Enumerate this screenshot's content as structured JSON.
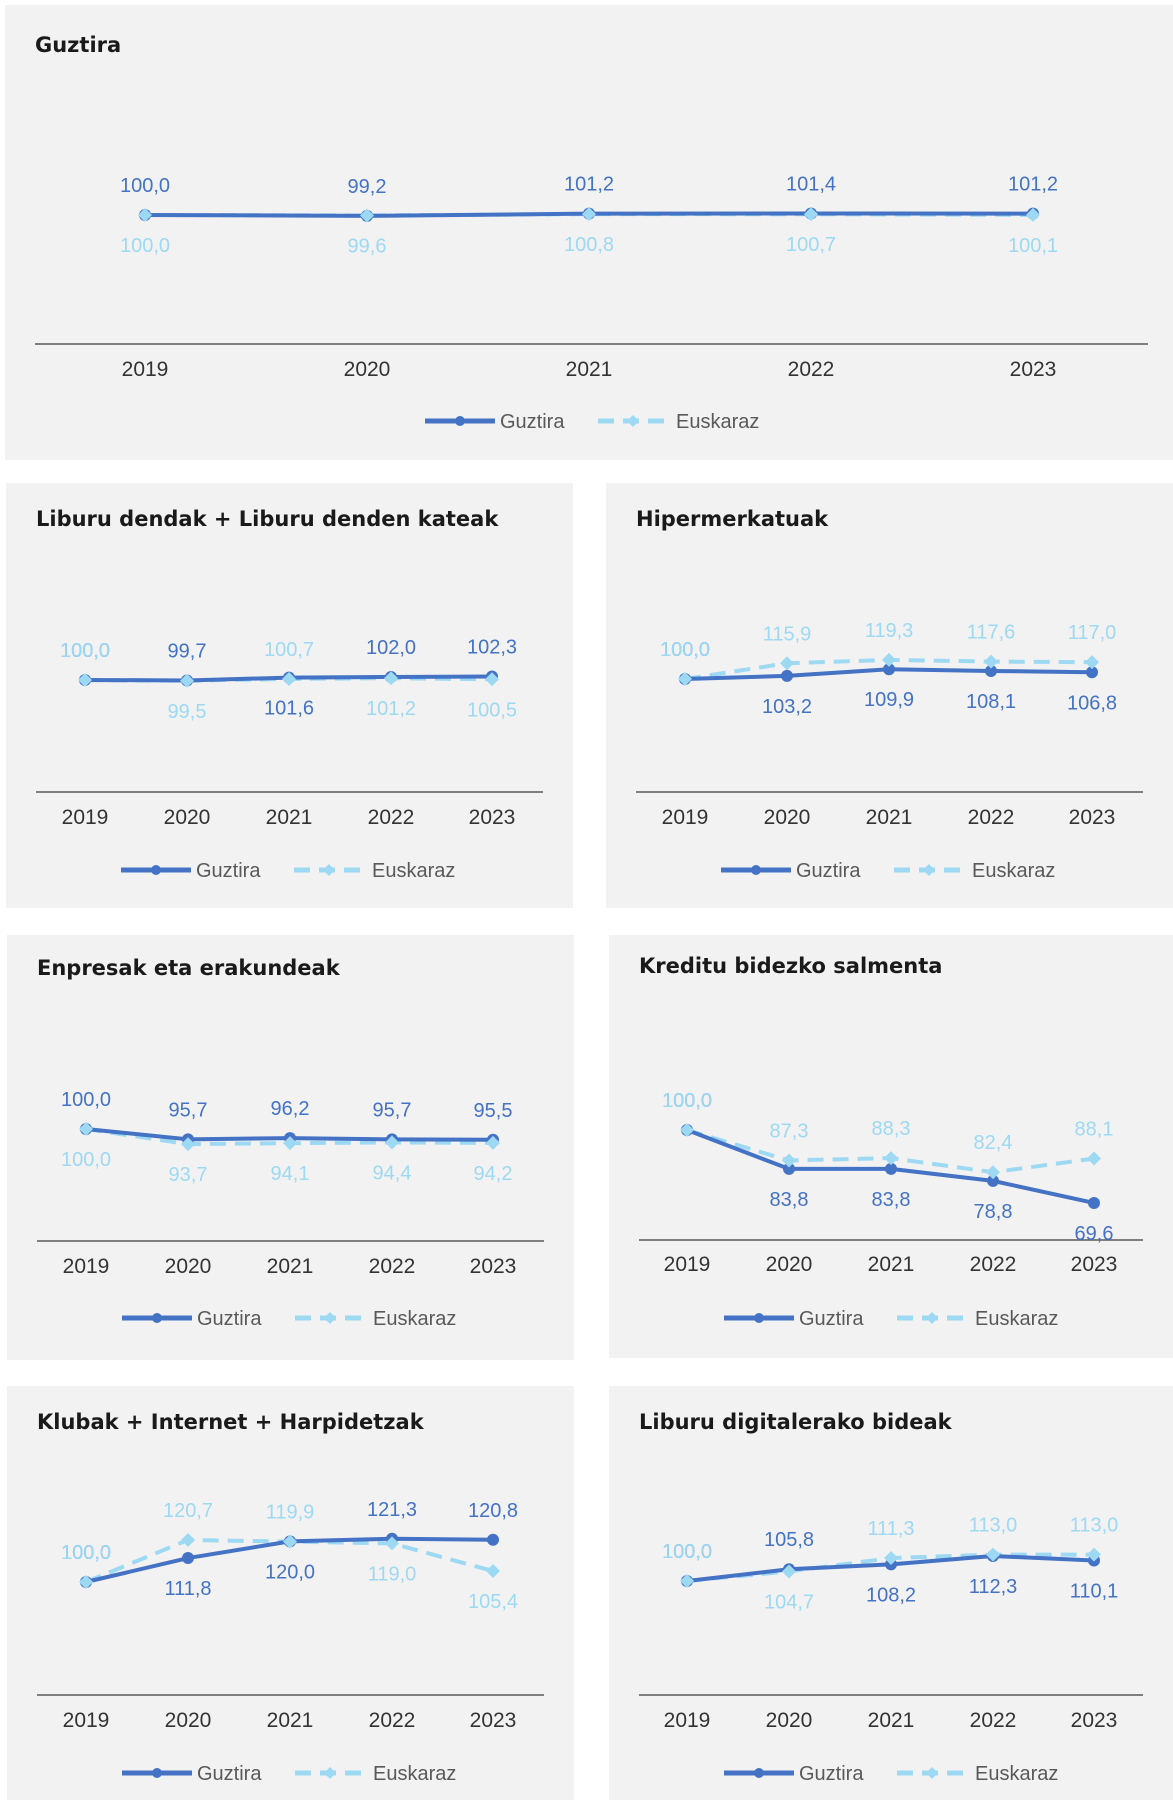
{
  "colors": {
    "total": "#4472c4",
    "basque": "#9dd9f3",
    "panel_bg": "#f2f2f2",
    "axis": "#595959"
  },
  "legend": {
    "total": "Guztira",
    "basque": "Euskaraz"
  },
  "chart_data": [
    {
      "type": "line",
      "title": "Guztira",
      "categories": [
        "2019",
        "2020",
        "2021",
        "2022",
        "2023"
      ],
      "series": [
        {
          "name": "Guztira",
          "values": [
            100.0,
            99.2,
            101.2,
            101.4,
            101.2
          ],
          "labels": [
            "100,0",
            "99,2",
            "101,2",
            "101,4",
            "101,2"
          ]
        },
        {
          "name": "Euskaraz",
          "values": [
            100.0,
            99.6,
            100.8,
            100.7,
            100.1
          ],
          "labels": [
            "100,0",
            "99,6",
            "100,8",
            "100,7",
            "100,1"
          ]
        }
      ],
      "ylim": [
        0,
        200
      ]
    },
    {
      "type": "line",
      "title": "Liburu dendak + Liburu denden kateak",
      "categories": [
        "2019",
        "2020",
        "2021",
        "2022",
        "2023"
      ],
      "series": [
        {
          "name": "Guztira",
          "values": [
            100.0,
            99.7,
            101.6,
            102.0,
            102.3
          ],
          "labels": [
            "100,0",
            "99,7",
            "101,6",
            "102,0",
            "102,3"
          ]
        },
        {
          "name": "Euskaraz",
          "values": [
            100.0,
            99.5,
            100.7,
            101.2,
            100.5
          ],
          "labels": [
            "100,0",
            "99,5",
            "100,7",
            "101,2",
            "100,5"
          ]
        }
      ],
      "ylim": [
        0,
        200
      ]
    },
    {
      "type": "line",
      "title": "Hipermerkatuak",
      "categories": [
        "2019",
        "2020",
        "2021",
        "2022",
        "2023"
      ],
      "series": [
        {
          "name": "Guztira",
          "values": [
            100.0,
            103.2,
            109.9,
            108.1,
            106.8
          ],
          "labels": [
            "100,0",
            "103,2",
            "109,9",
            "108,1",
            "106,8"
          ]
        },
        {
          "name": "Euskaraz",
          "values": [
            100.0,
            115.9,
            119.3,
            117.6,
            117.0
          ],
          "labels": [
            "100,0",
            "115,9",
            "119,3",
            "117,6",
            "117,0"
          ]
        }
      ],
      "ylim": [
        0,
        200
      ]
    },
    {
      "type": "line",
      "title": "Enpresak eta erakundeak",
      "categories": [
        "2019",
        "2020",
        "2021",
        "2022",
        "2023"
      ],
      "series": [
        {
          "name": "Guztira",
          "values": [
            100.0,
            95.7,
            96.2,
            95.7,
            95.5
          ],
          "labels": [
            "100,0",
            "95,7",
            "96,2",
            "95,7",
            "95,5"
          ]
        },
        {
          "name": "Euskaraz",
          "values": [
            100.0,
            93.7,
            94.1,
            94.4,
            94.2
          ],
          "labels": [
            "100,0",
            "93,7",
            "94,1",
            "94,4",
            "94,2"
          ]
        }
      ],
      "ylim": [
        0,
        200
      ]
    },
    {
      "type": "line",
      "title": "Kreditu bidezko salmenta",
      "categories": [
        "2019",
        "2020",
        "2021",
        "2022",
        "2023"
      ],
      "series": [
        {
          "name": "Guztira",
          "values": [
            100.0,
            83.8,
            83.8,
            78.8,
            69.6
          ],
          "labels": [
            "100,0",
            "83,8",
            "83,8",
            "78,8",
            "69,6"
          ]
        },
        {
          "name": "Euskaraz",
          "values": [
            100.0,
            87.3,
            88.3,
            82.4,
            88.1
          ],
          "labels": [
            "100,0",
            "87,3",
            "88,3",
            "82,4",
            "88,1"
          ]
        }
      ],
      "ylim": [
        0,
        200
      ]
    },
    {
      "type": "line",
      "title": "Klubak + Internet + Harpidetzak",
      "categories": [
        "2019",
        "2020",
        "2021",
        "2022",
        "2023"
      ],
      "series": [
        {
          "name": "Guztira",
          "values": [
            100.0,
            111.8,
            120.0,
            121.3,
            120.8
          ],
          "labels": [
            "100,0",
            "111,8",
            "120,0",
            "121,3",
            "120,8"
          ]
        },
        {
          "name": "Euskaraz",
          "values": [
            100.0,
            120.7,
            119.9,
            119.0,
            105.4
          ],
          "labels": [
            "100,0",
            "120,7",
            "119,9",
            "119,0",
            "105,4"
          ]
        }
      ],
      "ylim": [
        0,
        200
      ]
    },
    {
      "type": "line",
      "title": "Liburu digitalerako bideak",
      "categories": [
        "2019",
        "2020",
        "2021",
        "2022",
        "2023"
      ],
      "series": [
        {
          "name": "Guztira",
          "values": [
            100.0,
            105.8,
            108.2,
            112.3,
            110.1
          ],
          "labels": [
            "100,0",
            "105,8",
            "108,2",
            "112,3",
            "110,1"
          ]
        },
        {
          "name": "Euskaraz",
          "values": [
            100.0,
            104.7,
            111.3,
            113.0,
            113.0
          ],
          "labels": [
            "100,0",
            "104,7",
            "111,3",
            "113,0",
            "113,0"
          ]
        }
      ],
      "ylim": [
        0,
        200
      ]
    }
  ]
}
